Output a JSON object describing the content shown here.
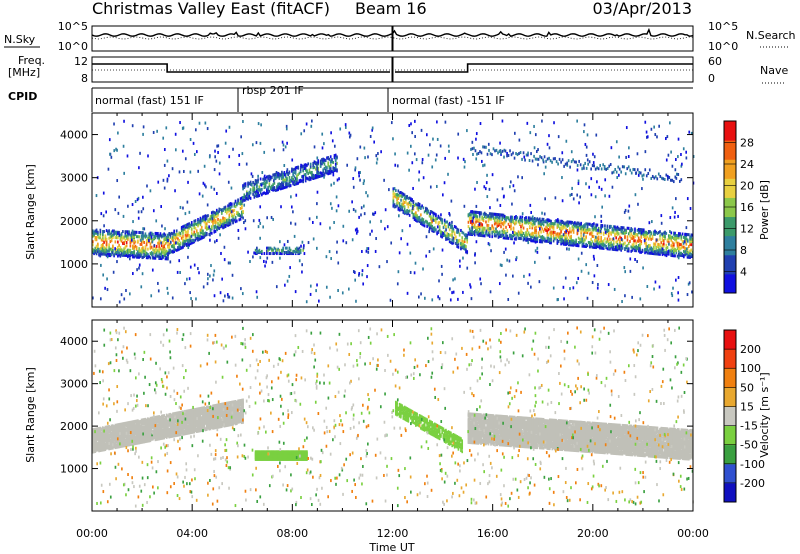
{
  "header": {
    "station": "Christmas Valley East (fitACF)",
    "beam": "Beam 16",
    "date": "03/Apr/2013"
  },
  "noise_panel": {
    "left_label": "N.Sky",
    "right_label": "N.Search",
    "left_ticks": [
      "10^5",
      "10^0"
    ],
    "right_ticks": [
      "10^5",
      "10^0"
    ]
  },
  "freq_panel": {
    "left_label_1": "Freq.",
    "left_label_2": "[MHz]",
    "right_label": "Nave",
    "left_ticks": [
      "12",
      "8"
    ],
    "right_ticks": [
      "60",
      "0"
    ]
  },
  "cpid": {
    "label": "CPID",
    "segments": [
      "normal (fast) 151 IF",
      "rbsp 201 IF",
      "normal (fast) -151 IF"
    ]
  },
  "colors": {
    "power_scale": [
      "#1010e0",
      "#2040b0",
      "#2e7f9e",
      "#3b9a6a",
      "#8cc84a",
      "#e8d040",
      "#f0a020",
      "#f06010",
      "#e81010"
    ],
    "velocity_scale": [
      "#1010c0",
      "#3050d0",
      "#3aa040",
      "#7ad040",
      "#c8c8c0",
      "#e8a830",
      "#f08010",
      "#f04010",
      "#e81010"
    ],
    "ground_scatter": "#c0c0b8"
  },
  "chart_data": [
    {
      "type": "heatmap",
      "quantity": "Power",
      "ylabel": "Slant Range [km]",
      "ylim": [
        0,
        4500
      ],
      "yticks": [
        "1000",
        "2000",
        "3000",
        "4000"
      ],
      "xlim_hours": [
        0,
        24
      ],
      "colorbar_label": "Power [dB]",
      "colorbar_ticks": [
        "4",
        "8",
        "12",
        "16",
        "20",
        "24",
        "28"
      ],
      "colorbar_range": [
        0,
        32
      ],
      "echo_bands": [
        {
          "start_h": 0.0,
          "end_h": 3.0,
          "center_km": [
            1550,
            1450
          ],
          "width_km": 600,
          "max_db": 30
        },
        {
          "start_h": 3.0,
          "end_h": 6.0,
          "center_km": [
            1500,
            2350
          ],
          "width_km": 500,
          "max_db": 26
        },
        {
          "start_h": 6.0,
          "end_h": 9.8,
          "center_km": [
            2700,
            3400
          ],
          "width_km": 400,
          "max_db": 14
        },
        {
          "start_h": 6.5,
          "end_h": 8.5,
          "center_km": [
            1350,
            1350
          ],
          "width_km": 150,
          "max_db": 14
        },
        {
          "start_h": 12.0,
          "end_h": 15.0,
          "center_km": [
            2600,
            1500
          ],
          "width_km": 450,
          "max_db": 24
        },
        {
          "start_h": 15.0,
          "end_h": 24.0,
          "center_km": [
            2000,
            1450
          ],
          "width_km": 550,
          "max_db": 30
        }
      ]
    },
    {
      "type": "heatmap",
      "quantity": "Velocity",
      "ylabel": "Slant Range [km]",
      "ylim": [
        0,
        4500
      ],
      "yticks": [
        "1000",
        "2000",
        "3000",
        "4000"
      ],
      "xlim_hours": [
        0,
        24
      ],
      "xticks": [
        "00:00",
        "04:00",
        "08:00",
        "12:00",
        "16:00",
        "20:00",
        "00:00"
      ],
      "xlabel": "Time UT",
      "colorbar_label": "Velocity [m s⁻¹]",
      "colorbar_ticks": [
        "200",
        "100",
        "50",
        "15",
        "-15",
        "-50",
        "-100",
        "-200"
      ],
      "ground_scatter_bands": [
        {
          "start_h": 0.0,
          "end_h": 6.0,
          "center_km": [
            1700,
            2400
          ],
          "width_km": 550
        },
        {
          "start_h": 15.0,
          "end_h": 24.0,
          "center_km": [
            2000,
            1600
          ],
          "width_km": 700
        }
      ]
    }
  ]
}
